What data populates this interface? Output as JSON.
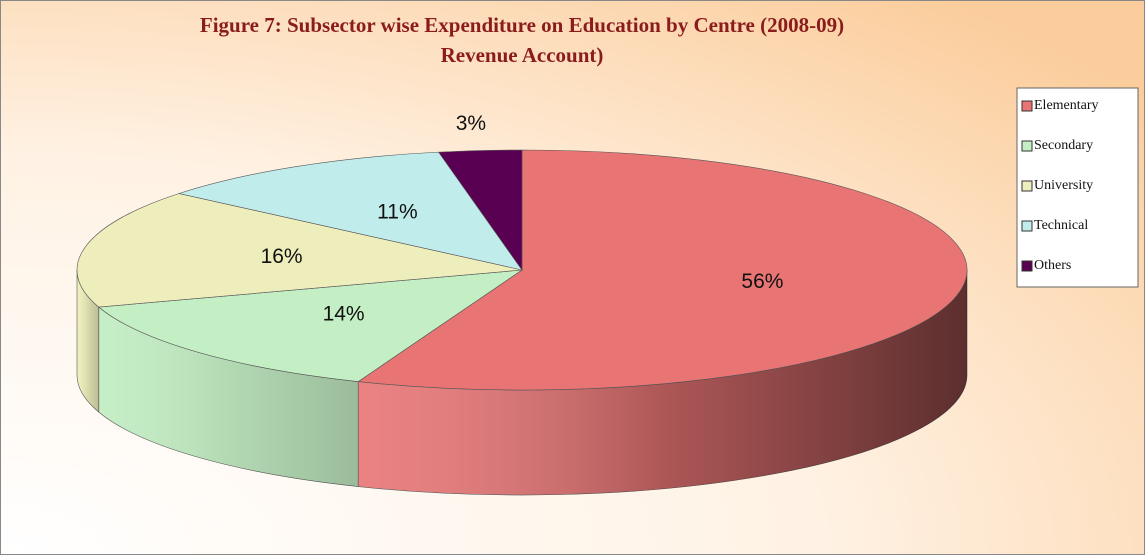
{
  "chart_data": {
    "type": "pie",
    "title": "Figure 7: Subsector wise Expenditure on Education by Centre (2008-09)",
    "subtitle": "Revenue Account)",
    "categories": [
      "Elementary",
      "Secondary",
      "University",
      "Technical",
      "Others"
    ],
    "values": [
      56,
      14,
      16,
      11,
      3
    ],
    "value_labels": [
      "56%",
      "14%",
      "16%",
      "11%",
      "3%"
    ],
    "colors": [
      "#e87474",
      "#c4eec4",
      "#eeeebc",
      "#c0ecec",
      "#5a0052"
    ],
    "legend": "right"
  }
}
